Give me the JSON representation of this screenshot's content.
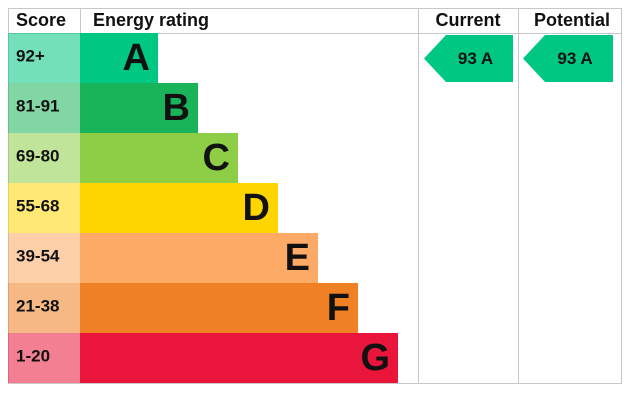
{
  "header": {
    "score": "Score",
    "rating": "Energy rating",
    "current": "Current",
    "potential": "Potential"
  },
  "bands": [
    {
      "score": "92+",
      "letter": "A",
      "color": "#00c781"
    },
    {
      "score": "81-91",
      "letter": "B",
      "color": "#19b459"
    },
    {
      "score": "69-80",
      "letter": "C",
      "color": "#8dce46"
    },
    {
      "score": "55-68",
      "letter": "D",
      "color": "#ffd500"
    },
    {
      "score": "39-54",
      "letter": "E",
      "color": "#fcaa65"
    },
    {
      "score": "21-38",
      "letter": "F",
      "color": "#ef8023"
    },
    {
      "score": "1-20",
      "letter": "G",
      "color": "#e9153b"
    }
  ],
  "current": {
    "label": "93 A",
    "color": "#00c781"
  },
  "potential": {
    "label": "93 A",
    "color": "#00c781"
  }
}
